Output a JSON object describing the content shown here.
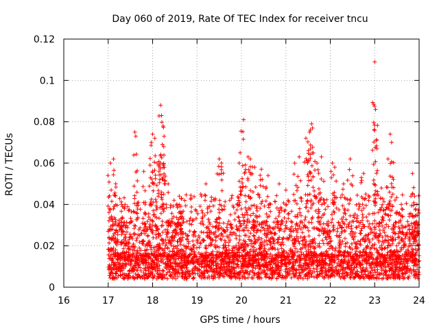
{
  "chart_data": {
    "type": "scatter",
    "title": "Day 060 of 2019, Rate Of TEC Index for receiver tncu",
    "xlabel": "GPS time / hours",
    "ylabel": "ROTI / TECUs",
    "xlim": [
      16,
      24
    ],
    "ylim": [
      0,
      0.12
    ],
    "x_ticks": [
      "16",
      "17",
      "18",
      "19",
      "20",
      "21",
      "22",
      "23",
      "24"
    ],
    "y_ticks": [
      "0",
      "0.02",
      "0.04",
      "0.06",
      "0.08",
      "0.1",
      "0.12"
    ],
    "grid": true,
    "marker": "+",
    "color": "#ff0000",
    "x_coverage": [
      17.0,
      24.0
    ],
    "baseline_level": 0.01,
    "peaks": [
      {
        "x": 17.05,
        "y": 0.06
      },
      {
        "x": 17.12,
        "y": 0.062
      },
      {
        "x": 17.3,
        "y": 0.04
      },
      {
        "x": 17.6,
        "y": 0.075
      },
      {
        "x": 17.62,
        "y": 0.073
      },
      {
        "x": 17.8,
        "y": 0.056
      },
      {
        "x": 17.97,
        "y": 0.07
      },
      {
        "x": 18.0,
        "y": 0.074
      },
      {
        "x": 18.05,
        "y": 0.072
      },
      {
        "x": 18.18,
        "y": 0.088
      },
      {
        "x": 18.2,
        "y": 0.083
      },
      {
        "x": 18.22,
        "y": 0.069
      },
      {
        "x": 18.25,
        "y": 0.068
      },
      {
        "x": 18.1,
        "y": 0.06
      },
      {
        "x": 18.35,
        "y": 0.05
      },
      {
        "x": 18.6,
        "y": 0.044
      },
      {
        "x": 18.65,
        "y": 0.043
      },
      {
        "x": 19.2,
        "y": 0.05
      },
      {
        "x": 19.5,
        "y": 0.062
      },
      {
        "x": 19.55,
        "y": 0.06
      },
      {
        "x": 19.95,
        "y": 0.06
      },
      {
        "x": 19.97,
        "y": 0.065
      },
      {
        "x": 20.05,
        "y": 0.081
      },
      {
        "x": 20.15,
        "y": 0.063
      },
      {
        "x": 20.2,
        "y": 0.062
      },
      {
        "x": 20.3,
        "y": 0.058
      },
      {
        "x": 20.45,
        "y": 0.057
      },
      {
        "x": 20.6,
        "y": 0.054
      },
      {
        "x": 20.85,
        "y": 0.05
      },
      {
        "x": 21.0,
        "y": 0.047
      },
      {
        "x": 21.2,
        "y": 0.06
      },
      {
        "x": 21.3,
        "y": 0.063
      },
      {
        "x": 21.45,
        "y": 0.072
      },
      {
        "x": 21.55,
        "y": 0.076
      },
      {
        "x": 21.58,
        "y": 0.079
      },
      {
        "x": 21.6,
        "y": 0.077
      },
      {
        "x": 21.7,
        "y": 0.06
      },
      {
        "x": 21.8,
        "y": 0.063
      },
      {
        "x": 22.05,
        "y": 0.06
      },
      {
        "x": 22.1,
        "y": 0.058
      },
      {
        "x": 22.3,
        "y": 0.05
      },
      {
        "x": 22.45,
        "y": 0.062
      },
      {
        "x": 22.7,
        "y": 0.053
      },
      {
        "x": 22.75,
        "y": 0.055
      },
      {
        "x": 22.98,
        "y": 0.05
      },
      {
        "x": 23.0,
        "y": 0.109
      },
      {
        "x": 23.02,
        "y": 0.086
      },
      {
        "x": 23.05,
        "y": 0.067
      },
      {
        "x": 23.15,
        "y": 0.048
      },
      {
        "x": 23.3,
        "y": 0.062
      },
      {
        "x": 23.35,
        "y": 0.074
      },
      {
        "x": 23.38,
        "y": 0.07
      },
      {
        "x": 23.6,
        "y": 0.04
      },
      {
        "x": 23.85,
        "y": 0.055
      },
      {
        "x": 23.9,
        "y": 0.044
      },
      {
        "x": 23.95,
        "y": 0.04
      }
    ]
  }
}
